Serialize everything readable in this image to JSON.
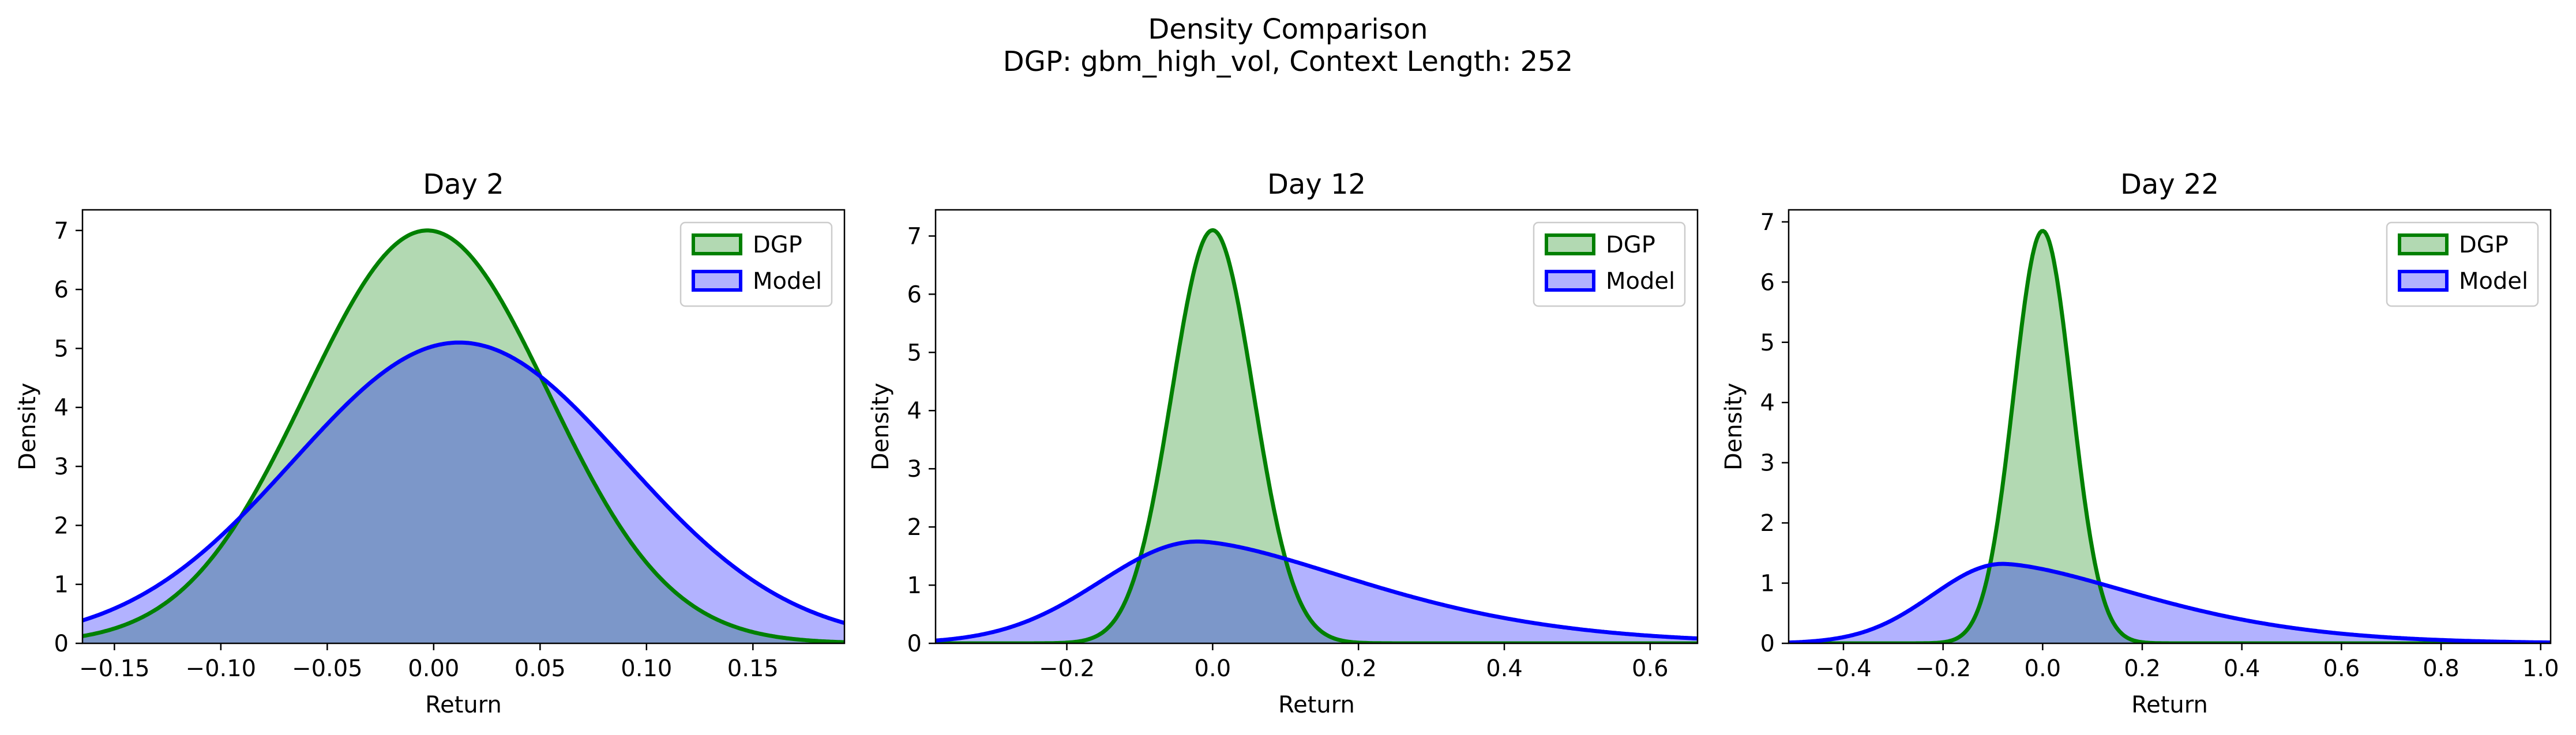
{
  "title": "Density Comparison",
  "subtitle": "DGP: gbm_high_vol, Context Length: 252",
  "legend_entries": [
    "DGP",
    "Model"
  ],
  "colors": {
    "dgp": "#008000",
    "model": "#0000ff"
  },
  "chart_data": [
    {
      "type": "area",
      "title": "Day 2",
      "xlabel": "Return",
      "ylabel": "Density",
      "xlim": [
        -0.165,
        0.193
      ],
      "ylim": [
        0,
        7.35
      ],
      "xticks": [
        -0.15,
        -0.1,
        -0.05,
        0.0,
        0.05,
        0.1,
        0.15
      ],
      "xtick_labels": [
        "−0.15",
        "−0.10",
        "−0.05",
        "0.00",
        "0.05",
        "0.10",
        "0.15"
      ],
      "yticks": [
        0,
        1,
        2,
        3,
        4,
        5,
        6,
        7
      ],
      "ytick_labels": [
        "0",
        "1",
        "2",
        "3",
        "4",
        "5",
        "6",
        "7"
      ],
      "legend_position": "upper right",
      "series": [
        {
          "name": "DGP",
          "distribution": "normal",
          "mean": -0.003,
          "sd": 0.057,
          "peak_density": 7.0
        },
        {
          "name": "Model",
          "distribution": "normal",
          "mean": 0.012,
          "sd": 0.078,
          "peak_density": 5.1
        }
      ]
    },
    {
      "type": "area",
      "title": "Day 12",
      "xlabel": "Return",
      "ylabel": "Density",
      "xlim": [
        -0.38,
        0.665
      ],
      "ylim": [
        0,
        7.45
      ],
      "xticks": [
        -0.2,
        0.0,
        0.2,
        0.4,
        0.6
      ],
      "xtick_labels": [
        "−0.2",
        "0.0",
        "0.2",
        "0.4",
        "0.6"
      ],
      "yticks": [
        0,
        1,
        2,
        3,
        4,
        5,
        6,
        7
      ],
      "ytick_labels": [
        "0",
        "1",
        "2",
        "3",
        "4",
        "5",
        "6",
        "7"
      ],
      "legend_position": "upper right",
      "series": [
        {
          "name": "DGP",
          "distribution": "normal",
          "mean": 0.0,
          "sd": 0.056,
          "peak_density": 7.1
        },
        {
          "name": "Model",
          "distribution": "right-skewed",
          "mode": -0.02,
          "peak_density": 1.75
        }
      ]
    },
    {
      "type": "area",
      "title": "Day 22",
      "xlabel": "Return",
      "ylabel": "Density",
      "xlim": [
        -0.51,
        1.02
      ],
      "ylim": [
        0,
        7.2
      ],
      "xticks": [
        -0.4,
        -0.2,
        0.0,
        0.2,
        0.4,
        0.6,
        0.8,
        1.0
      ],
      "xtick_labels": [
        "−0.4",
        "−0.2",
        "0.0",
        "0.2",
        "0.4",
        "0.6",
        "0.8",
        "1.0"
      ],
      "yticks": [
        0,
        1,
        2,
        3,
        4,
        5,
        6,
        7
      ],
      "ytick_labels": [
        "0",
        "1",
        "2",
        "3",
        "4",
        "5",
        "6",
        "7"
      ],
      "legend_position": "upper right",
      "series": [
        {
          "name": "DGP",
          "distribution": "normal",
          "mean": 0.0,
          "sd": 0.058,
          "peak_density": 6.85
        },
        {
          "name": "Model",
          "distribution": "right-skewed",
          "mode": -0.08,
          "peak_density": 1.32
        }
      ]
    }
  ]
}
